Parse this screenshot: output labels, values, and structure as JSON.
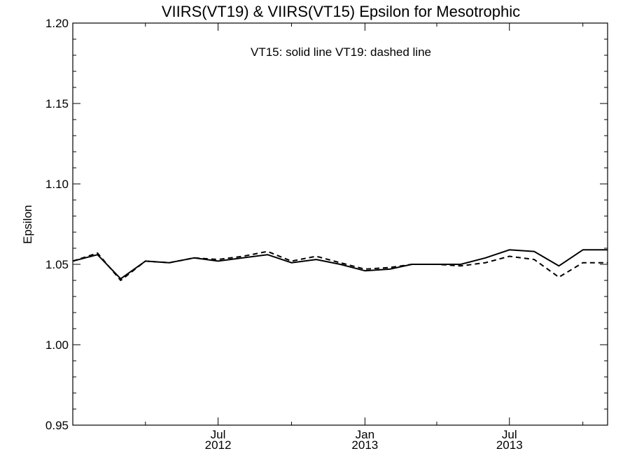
{
  "chart_data": {
    "type": "line",
    "title": "VIIRS(VT19) & VIIRS(VT15)  Epsilon for Mesotrophic",
    "xlabel": "",
    "ylabel": "Epsilon",
    "annotation": "VT15: solid line   VT19: dashed line",
    "xlim": [
      "2012-01-01",
      "2013-11-01"
    ],
    "ylim": [
      0.95,
      1.2
    ],
    "yticks": [
      {
        "value": 0.95,
        "label": "0.95"
      },
      {
        "value": 1.0,
        "label": "1.00"
      },
      {
        "value": 1.05,
        "label": "1.05"
      },
      {
        "value": 1.1,
        "label": "1.10"
      },
      {
        "value": 1.15,
        "label": "1.15"
      },
      {
        "value": 1.2,
        "label": "1.20"
      }
    ],
    "y_minor_step": 0.01,
    "xticks": [
      {
        "date": "2012-07-01",
        "label_month": "Jul",
        "label_year": "2012"
      },
      {
        "date": "2013-01-01",
        "label_month": "Jan",
        "label_year": "2013"
      },
      {
        "date": "2013-07-01",
        "label_month": "Jul",
        "label_year": "2013"
      }
    ],
    "x_minor_ticks": [
      "2012-04-01",
      "2012-10-01",
      "2013-04-01",
      "2013-10-01"
    ],
    "grid": false,
    "series": [
      {
        "name": "VT15",
        "style": "solid",
        "color": "#000000",
        "x": [
          "2012-01-01",
          "2012-02-01",
          "2012-03-01",
          "2012-04-01",
          "2012-05-01",
          "2012-06-01",
          "2012-07-01",
          "2012-08-01",
          "2012-09-01",
          "2012-10-01",
          "2012-11-01",
          "2012-12-01",
          "2013-01-01",
          "2013-02-01",
          "2013-03-01",
          "2013-04-01",
          "2013-05-01",
          "2013-06-01",
          "2013-07-01",
          "2013-08-01",
          "2013-09-01",
          "2013-10-01",
          "2013-11-01"
        ],
        "values": [
          1.052,
          1.056,
          1.041,
          1.052,
          1.051,
          1.054,
          1.052,
          1.054,
          1.056,
          1.051,
          1.053,
          1.05,
          1.046,
          1.047,
          1.05,
          1.05,
          1.05,
          1.054,
          1.059,
          1.058,
          1.049,
          1.059,
          1.059
        ]
      },
      {
        "name": "VT19",
        "style": "dashed",
        "color": "#000000",
        "x": [
          "2012-01-01",
          "2012-02-01",
          "2012-03-01",
          "2012-04-01",
          "2012-05-01",
          "2012-06-01",
          "2012-07-01",
          "2012-08-01",
          "2012-09-01",
          "2012-10-01",
          "2012-11-01",
          "2012-12-01",
          "2013-01-01",
          "2013-02-01",
          "2013-03-01",
          "2013-04-01",
          "2013-05-01",
          "2013-06-01",
          "2013-07-01",
          "2013-08-01",
          "2013-09-01",
          "2013-10-01",
          "2013-11-01"
        ],
        "values": [
          1.052,
          1.057,
          1.04,
          1.052,
          1.051,
          1.054,
          1.053,
          1.055,
          1.058,
          1.052,
          1.055,
          1.051,
          1.047,
          1.048,
          1.05,
          1.05,
          1.049,
          1.051,
          1.055,
          1.053,
          1.042,
          1.051,
          1.051
        ]
      }
    ]
  }
}
